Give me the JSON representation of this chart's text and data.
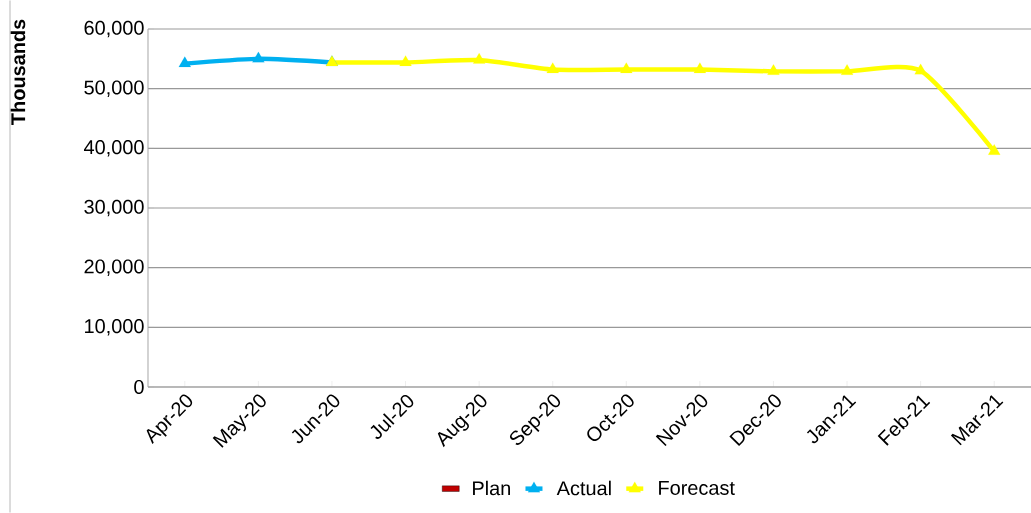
{
  "chart_data": {
    "type": "line",
    "ylabel": "Thousands",
    "categories": [
      "Apr-20",
      "May-20",
      "Jun-20",
      "Jul-20",
      "Aug-20",
      "Sep-20",
      "Oct-20",
      "Nov-20",
      "Dec-20",
      "Jan-21",
      "Feb-21",
      "Mar-21"
    ],
    "series": [
      {
        "name": "Plan",
        "type": "bar",
        "color": "#c00000",
        "values": [
          null,
          null,
          null,
          null,
          null,
          null,
          null,
          null,
          null,
          null,
          null,
          null
        ]
      },
      {
        "name": "Actual",
        "color": "#00b0f0",
        "values": [
          54200,
          55000,
          54400,
          null,
          null,
          null,
          null,
          null,
          null,
          null,
          null,
          null
        ]
      },
      {
        "name": "Forecast",
        "color": "#ffff00",
        "values": [
          null,
          null,
          54400,
          54400,
          54800,
          53200,
          53200,
          53200,
          52900,
          52900,
          53000,
          39500
        ]
      }
    ],
    "ylim": [
      0,
      60000
    ],
    "yticks": [
      {
        "value": 0,
        "label": "0"
      },
      {
        "value": 10000,
        "label": "10,000"
      },
      {
        "value": 20000,
        "label": "20,000"
      },
      {
        "value": 30000,
        "label": "30,000"
      },
      {
        "value": 40000,
        "label": "40,000"
      },
      {
        "value": 50000,
        "label": "50,000"
      },
      {
        "value": 60000,
        "label": "60,000"
      }
    ],
    "grid": "y",
    "legend": "bottom",
    "marker": "triangle",
    "line_style": "solid"
  }
}
